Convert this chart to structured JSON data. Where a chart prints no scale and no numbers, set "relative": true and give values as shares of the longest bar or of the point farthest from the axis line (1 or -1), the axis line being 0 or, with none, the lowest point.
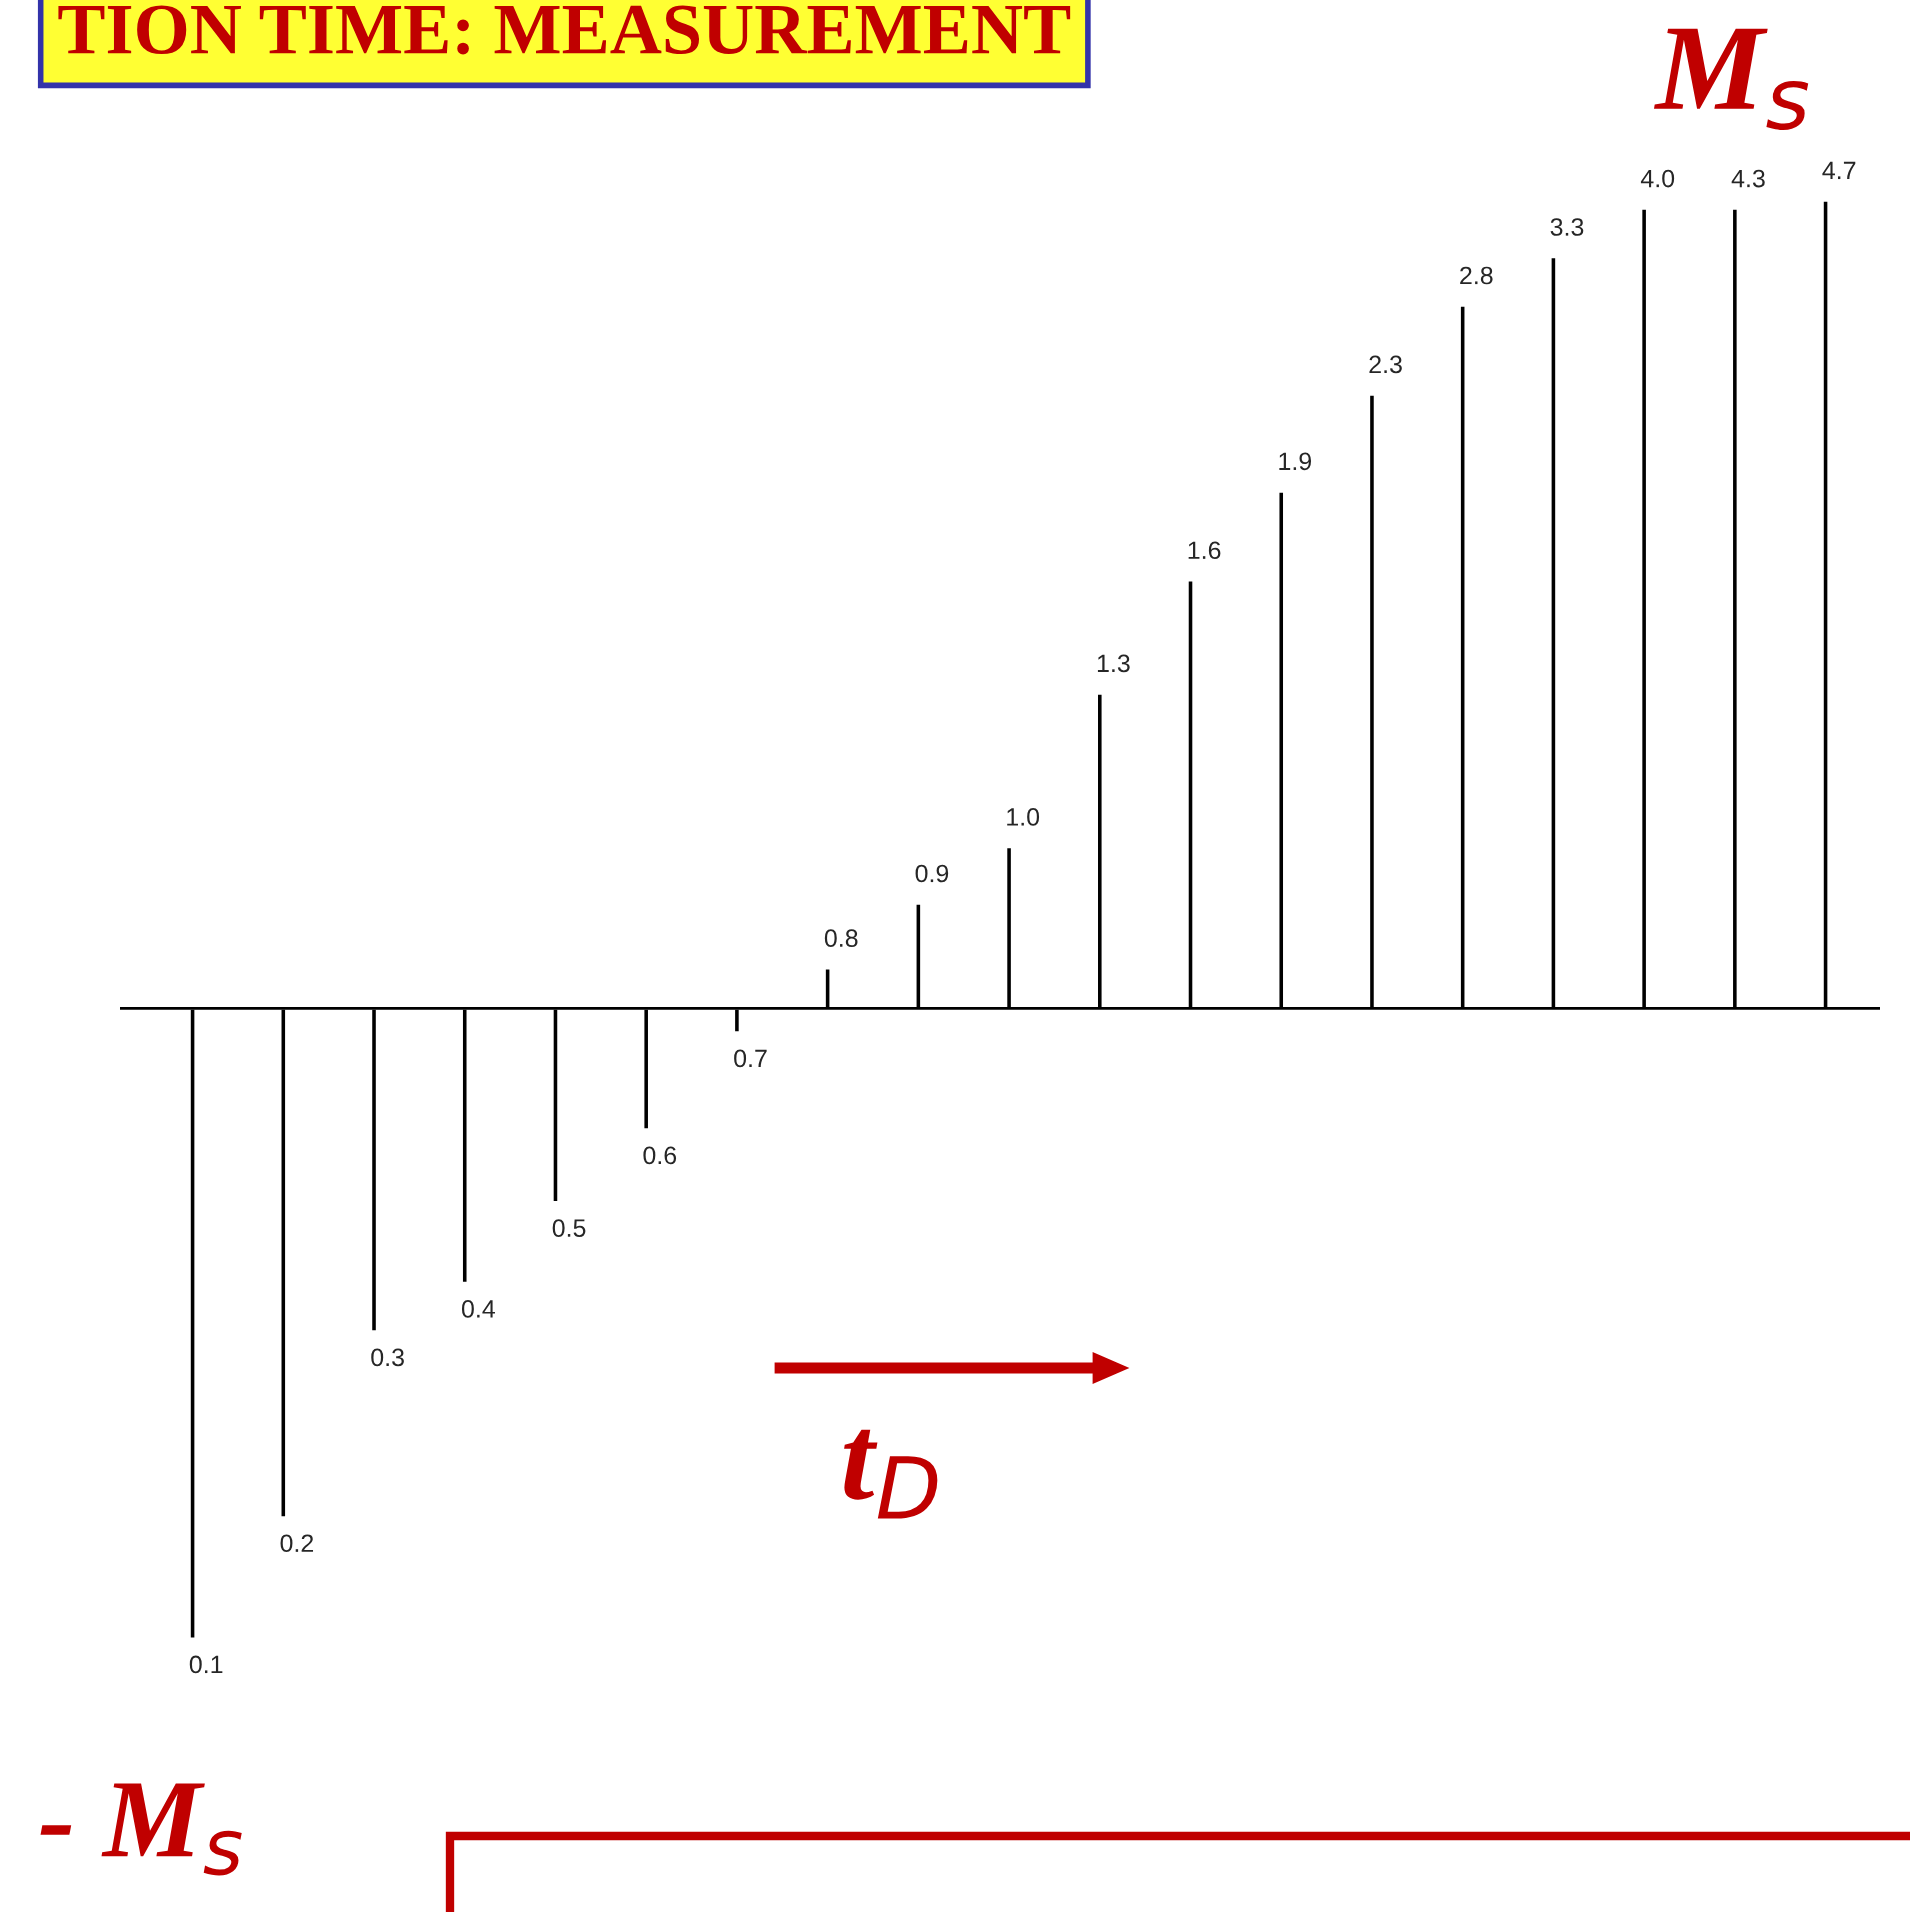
{
  "chart_data": {
    "type": "bar",
    "relative": true,
    "title": "TION TIME: MEASUREMENT",
    "categories": [
      "0.1",
      "0.2",
      "0.3",
      "0.4",
      "0.5",
      "0.6",
      "0.7",
      "0.8",
      "0.9",
      "1.0",
      "1.3",
      "1.6",
      "1.9",
      "2.3",
      "2.8",
      "3.3",
      "4.0",
      "4.3",
      "4.7"
    ],
    "values": [
      -0.78,
      -0.63,
      -0.4,
      -0.34,
      -0.24,
      -0.15,
      -0.03,
      0.05,
      0.13,
      0.2,
      0.39,
      0.53,
      0.64,
      0.76,
      0.87,
      0.93,
      0.99,
      0.99,
      1.0
    ],
    "color": "#000000",
    "annotations": [
      "M$_{s}$",
      "- M$_{s}$",
      "t$_{D}$"
    ]
  }
}
